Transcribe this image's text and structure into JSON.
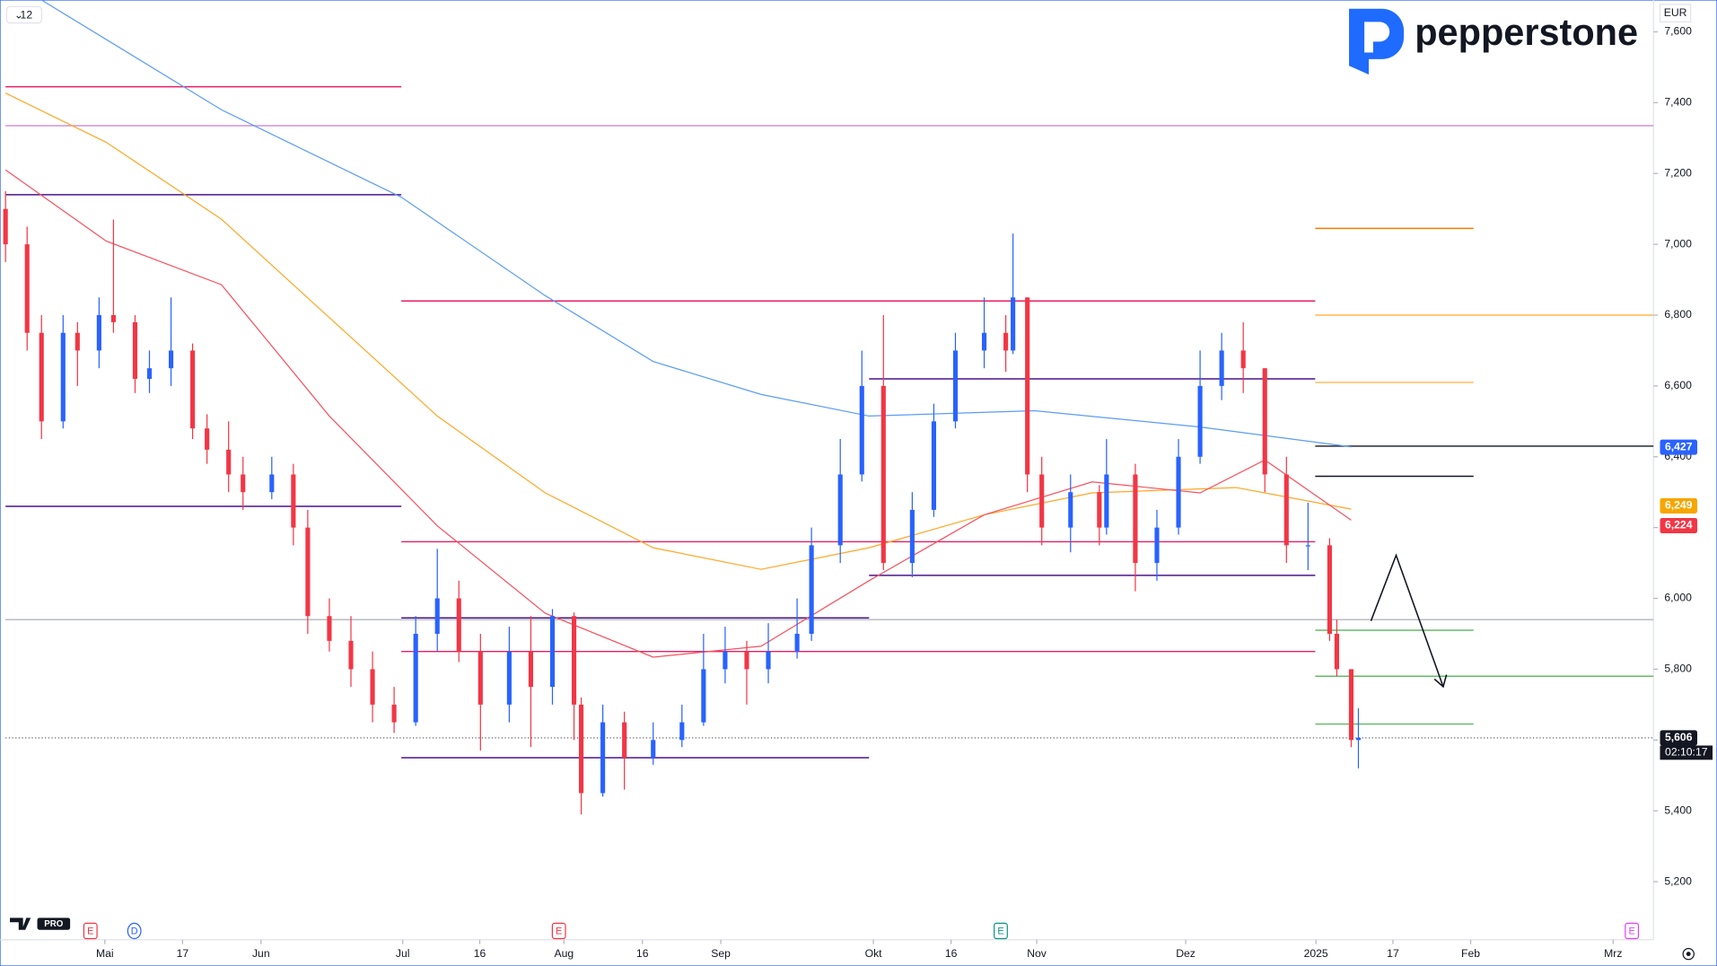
{
  "chart_data": {
    "type": "candlestick",
    "interval": "12",
    "currency": "EUR",
    "brand": "pepperstone",
    "ylim": [
      5036,
      7690
    ],
    "xlim": [
      0,
      229
    ],
    "yticks": [
      {
        "value": 5200,
        "label": "5,200"
      },
      {
        "value": 5400,
        "label": "5,400"
      },
      {
        "value": 5600,
        "label": "5,600"
      },
      {
        "value": 5800,
        "label": "5,800"
      },
      {
        "value": 6000,
        "label": "6,000"
      },
      {
        "value": 6200,
        "label": "6,200"
      },
      {
        "value": 6400,
        "label": "6,400"
      },
      {
        "value": 6600,
        "label": "6,600"
      },
      {
        "value": 6800,
        "label": "6,800"
      },
      {
        "value": 7000,
        "label": "7,000"
      },
      {
        "value": 7200,
        "label": "7,200"
      },
      {
        "value": 7400,
        "label": "7,400"
      },
      {
        "value": 7600,
        "label": "7,600"
      }
    ],
    "xticks": [
      {
        "value": 13.8,
        "label": "Mai"
      },
      {
        "value": 24.6,
        "label": "17"
      },
      {
        "value": 35.5,
        "label": "Jun"
      },
      {
        "value": 55.2,
        "label": "Jul"
      },
      {
        "value": 65.9,
        "label": "16"
      },
      {
        "value": 77.6,
        "label": "Aug"
      },
      {
        "value": 88.5,
        "label": "16"
      },
      {
        "value": 99.4,
        "label": "Sep"
      },
      {
        "value": 120.6,
        "label": "Okt"
      },
      {
        "value": 131.4,
        "label": "16"
      },
      {
        "value": 143.3,
        "label": "Nov"
      },
      {
        "value": 164,
        "label": "Dez"
      },
      {
        "value": 182.1,
        "label": "2025"
      },
      {
        "value": 192.8,
        "label": "17"
      },
      {
        "value": 203.6,
        "label": "Feb"
      },
      {
        "value": 223.4,
        "label": "Mrz"
      }
    ],
    "up_color": "#2962ff",
    "down_color": "#f23645",
    "x": [
      0,
      3,
      5,
      8,
      10,
      13,
      15,
      18,
      20,
      23,
      26,
      28,
      31,
      33,
      37,
      40,
      42,
      45,
      48,
      51,
      54,
      57,
      60,
      63,
      66,
      70,
      73,
      76,
      79,
      80,
      83,
      86,
      90,
      94,
      97,
      100,
      103,
      106,
      110,
      112,
      116,
      119,
      122,
      126,
      129,
      132,
      136,
      139,
      140,
      142,
      144,
      148,
      152,
      153,
      157,
      160,
      163,
      166,
      169,
      172,
      175,
      178,
      181,
      184,
      185,
      187,
      188
    ],
    "open": [
      7100,
      7000,
      6750,
      6500,
      6750,
      6700,
      6800,
      6780,
      6620,
      6650,
      6700,
      6480,
      6420,
      6350,
      6300,
      6350,
      6200,
      5950,
      5880,
      5800,
      5700,
      5650,
      5900,
      6000,
      5850,
      5700,
      5850,
      5750,
      5950,
      5700,
      5450,
      5650,
      5550,
      5600,
      5650,
      5800,
      5850,
      5800,
      5850,
      5900,
      6150,
      6350,
      6600,
      6100,
      6250,
      6500,
      6700,
      6750,
      6700,
      6850,
      6350,
      6200,
      6300,
      6200,
      6350,
      6100,
      6200,
      6400,
      6600,
      6700,
      6650,
      6350,
      6150,
      6150,
      5900,
      5800,
      5600
    ],
    "high": [
      7150,
      7050,
      6800,
      6800,
      6780,
      6850,
      7070,
      6800,
      6700,
      6850,
      6720,
      6520,
      6500,
      6400,
      6400,
      6380,
      6250,
      6000,
      5950,
      5850,
      5750,
      5950,
      6140,
      6050,
      5900,
      5920,
      5950,
      5970,
      5960,
      5720,
      5700,
      5680,
      5650,
      5700,
      5900,
      5920,
      5880,
      5930,
      6000,
      6200,
      6450,
      6700,
      6800,
      6300,
      6550,
      6750,
      6850,
      6800,
      7030,
      6850,
      6400,
      6350,
      6320,
      6450,
      6380,
      6250,
      6450,
      6700,
      6750,
      6780,
      6650,
      6400,
      6270,
      6170,
      5940,
      5800,
      5690
    ],
    "low": [
      6950,
      6700,
      6450,
      6480,
      6600,
      6650,
      6750,
      6580,
      6580,
      6600,
      6450,
      6380,
      6300,
      6250,
      6280,
      6150,
      5900,
      5850,
      5750,
      5650,
      5620,
      5640,
      5850,
      5820,
      5570,
      5650,
      5580,
      5700,
      5600,
      5390,
      5440,
      5460,
      5530,
      5580,
      5640,
      5760,
      5700,
      5760,
      5830,
      5880,
      6100,
      6330,
      6080,
      6060,
      6230,
      6480,
      6650,
      6640,
      6690,
      6300,
      6150,
      6130,
      6150,
      6180,
      6020,
      6050,
      6180,
      6380,
      6560,
      6580,
      6300,
      6100,
      6080,
      5880,
      5780,
      5580,
      5520
    ],
    "close": [
      7000,
      6750,
      6500,
      6750,
      6700,
      6800,
      6780,
      6620,
      6650,
      6700,
      6480,
      6420,
      6350,
      6300,
      6350,
      6200,
      5950,
      5880,
      5800,
      5700,
      5650,
      5900,
      6000,
      5850,
      5700,
      5850,
      5750,
      5950,
      5700,
      5450,
      5650,
      5550,
      5600,
      5650,
      5800,
      5850,
      5800,
      5850,
      5900,
      6150,
      6350,
      6600,
      6100,
      6250,
      6500,
      6700,
      6750,
      6700,
      6850,
      6350,
      6200,
      6300,
      6200,
      6350,
      6100,
      6200,
      6400,
      6600,
      6700,
      6650,
      6350,
      6150,
      6150,
      5900,
      5800,
      5600,
      5606
    ],
    "series": [
      {
        "color": "#5b9cf6",
        "x": [
          5,
          30,
          55,
          75,
          90,
          105,
          120,
          143,
          166,
          187
        ],
        "values": [
          7690,
          7380,
          7133,
          6855,
          6669,
          6576,
          6515,
          6530,
          6484,
          6428
        ]
      },
      {
        "color": "#ffa726",
        "x": [
          0,
          14,
          30,
          45,
          60,
          75,
          90,
          105,
          120,
          136,
          151,
          171,
          187
        ],
        "values": [
          7427,
          7288,
          7071,
          6793,
          6515,
          6298,
          6143,
          6082,
          6143,
          6236,
          6298,
          6313,
          6252
        ]
      },
      {
        "color": "#f7525f",
        "x": [
          0,
          14,
          30,
          45,
          60,
          75,
          90,
          105,
          120,
          136,
          151,
          166,
          175,
          187
        ],
        "values": [
          7210,
          7009,
          6886,
          6515,
          6205,
          5958,
          5834,
          5865,
          6050,
          6236,
          6329,
          6298,
          6391,
          6221
        ]
      }
    ],
    "levels": [
      {
        "value": 7445,
        "from": 0,
        "to": 55,
        "color": "#e91e63"
      },
      {
        "value": 7335,
        "from": 0,
        "to": 229,
        "color": "#ce93d8"
      },
      {
        "value": 7140,
        "from": 0,
        "to": 55,
        "color": "#4a148c"
      },
      {
        "value": 6840,
        "from": 55,
        "to": 182,
        "color": "#e91e63"
      },
      {
        "value": 6620,
        "from": 120,
        "to": 182,
        "color": "#4a148c"
      },
      {
        "value": 6430,
        "from": 182,
        "to": 229,
        "color": "#131722"
      },
      {
        "value": 6345,
        "from": 182,
        "to": 204,
        "color": "#131722"
      },
      {
        "value": 7045,
        "from": 182,
        "to": 204,
        "color": "#f57c00"
      },
      {
        "value": 6800,
        "from": 182,
        "to": 229,
        "color": "#ffb74d"
      },
      {
        "value": 6610,
        "from": 182,
        "to": 204,
        "color": "#ffb74d"
      },
      {
        "value": 6260,
        "from": 0,
        "to": 55,
        "color": "#4a148c"
      },
      {
        "value": 6160,
        "from": 55,
        "to": 182,
        "color": "#e91e63"
      },
      {
        "value": 6065,
        "from": 120,
        "to": 182,
        "color": "#4a148c"
      },
      {
        "value": 5940,
        "from": 0,
        "to": 229,
        "color": "#b2b5be"
      },
      {
        "value": 5945,
        "from": 55,
        "to": 120,
        "color": "#4a148c"
      },
      {
        "value": 5910,
        "from": 182,
        "to": 204,
        "color": "#66bb6a"
      },
      {
        "value": 5850,
        "from": 55,
        "to": 182,
        "color": "#e91e63"
      },
      {
        "value": 5780,
        "from": 182,
        "to": 229,
        "color": "#66bb6a"
      },
      {
        "value": 5645,
        "from": 182,
        "to": 204,
        "color": "#66bb6a"
      },
      {
        "value": 5550,
        "from": 55,
        "to": 120,
        "color": "#4a148c"
      },
      {
        "value": 5606,
        "from": 0,
        "to": 229,
        "color": "#787b86"
      }
    ],
    "price_labels": [
      {
        "value": 6427,
        "label": "6,427",
        "color": "#2962ff"
      },
      {
        "value": 6249,
        "label": "6,249",
        "color": "#f7a600"
      },
      {
        "value": 6224,
        "label": "6,224",
        "color": "#f23645"
      },
      {
        "value": 5606,
        "label": "5,606",
        "color": "#131722"
      }
    ],
    "countdown": "02:10:17",
    "event_markers": [
      {
        "x": 11.8,
        "label": "E"
      },
      {
        "x": 17.9,
        "label": "D"
      },
      {
        "x": 76.9,
        "label": "E"
      },
      {
        "x": 138.3,
        "label": "E"
      },
      {
        "x": 226,
        "label": "E"
      }
    ]
  }
}
